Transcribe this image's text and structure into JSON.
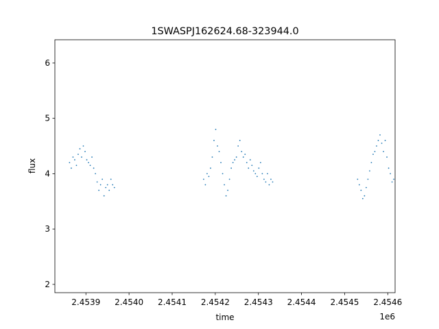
{
  "chart_data": {
    "type": "scatter",
    "title": "1SWASPJ162624.68-323944.0",
    "xlabel": "time",
    "ylabel": "flux",
    "x_offset_label": "1e6",
    "xlim": [
      2453828,
      2454617
    ],
    "ylim": [
      1.85,
      6.42
    ],
    "grid": false,
    "legend": "none",
    "marker_color": "#1f77b4",
    "xticks": [
      2453900,
      2454000,
      2454100,
      2454200,
      2454300,
      2454400,
      2454500,
      2454600
    ],
    "xtick_labels": [
      "2.4539",
      "2.4540",
      "2.4541",
      "2.4542",
      "2.4543",
      "2.4544",
      "2.4545",
      "2.4546"
    ],
    "yticks": [
      2,
      3,
      4,
      5,
      6
    ],
    "ytick_labels": [
      "2",
      "3",
      "4",
      "5",
      "6"
    ],
    "series": [
      {
        "x": [
          2453862,
          2453866,
          2453870,
          2453874,
          2453878,
          2453882,
          2453886,
          2453890,
          2453894,
          2453898,
          2453902,
          2453906,
          2453910,
          2453914,
          2453918,
          2453922,
          2453926,
          2453930,
          2453934,
          2453938,
          2453942,
          2453946,
          2453950,
          2453954,
          2453958,
          2453962,
          2453966,
          2454173,
          2454177,
          2454181,
          2454185,
          2454189,
          2454193,
          2454197,
          2454201,
          2454205,
          2454209,
          2454213,
          2454217,
          2454221,
          2454225,
          2454229,
          2454233,
          2454237,
          2454241,
          2454245,
          2454249,
          2454253,
          2454257,
          2454261,
          2454265,
          2454269,
          2454273,
          2454277,
          2454281,
          2454285,
          2454289,
          2454293,
          2454297,
          2454301,
          2454305,
          2454309,
          2454313,
          2454317,
          2454321,
          2454325,
          2454329,
          2454333,
          2454530,
          2454534,
          2454538,
          2454542,
          2454546,
          2454550,
          2454554,
          2454558,
          2454562,
          2454566,
          2454570,
          2454574,
          2454578,
          2454582,
          2454586,
          2454590,
          2454594,
          2454598,
          2454602,
          2454606,
          2454610,
          2454614
        ],
        "y": [
          4.2,
          4.1,
          4.3,
          4.25,
          4.15,
          4.35,
          4.45,
          4.3,
          4.5,
          4.4,
          4.25,
          4.2,
          4.15,
          4.3,
          4.1,
          4.0,
          3.85,
          3.7,
          3.8,
          3.9,
          3.6,
          3.75,
          3.8,
          3.7,
          3.9,
          3.8,
          3.75,
          3.9,
          3.8,
          4.0,
          3.95,
          4.1,
          4.3,
          4.6,
          4.8,
          4.5,
          4.4,
          4.2,
          4.0,
          3.8,
          3.6,
          3.7,
          3.9,
          4.1,
          4.2,
          4.25,
          4.3,
          4.5,
          4.6,
          4.4,
          4.3,
          4.35,
          4.2,
          4.1,
          4.25,
          4.15,
          4.05,
          4.0,
          3.95,
          4.1,
          4.2,
          4.0,
          3.9,
          3.85,
          4.0,
          3.8,
          3.9,
          3.85,
          3.9,
          3.8,
          3.7,
          3.55,
          3.6,
          3.75,
          3.9,
          4.05,
          4.2,
          4.35,
          4.4,
          4.5,
          4.6,
          4.7,
          4.55,
          4.4,
          4.6,
          4.3,
          4.1,
          4.0,
          3.85,
          3.9
        ]
      }
    ]
  }
}
